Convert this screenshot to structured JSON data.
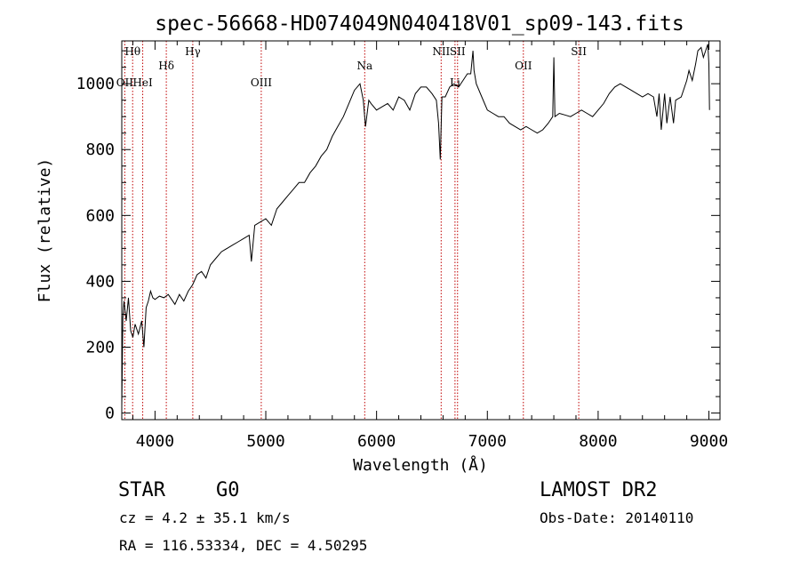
{
  "header": {
    "title": "spec-56668-HD074049N040418V01_sp09-143.fits"
  },
  "chart_data": {
    "type": "line",
    "xlabel": "Wavelength (Å)",
    "ylabel": "Flux (relative)",
    "xlim": [
      3700,
      9100
    ],
    "ylim": [
      -20,
      1130
    ],
    "x_ticks": [
      4000,
      5000,
      6000,
      7000,
      8000,
      9000
    ],
    "y_ticks": [
      0,
      200,
      400,
      600,
      800,
      1000
    ],
    "grid": false,
    "series": [
      {
        "x": [
          3700,
          3710,
          3720,
          3740,
          3760,
          3780,
          3800,
          3820,
          3850,
          3880,
          3900,
          3920,
          3940,
          3960,
          3980,
          4000,
          4040,
          4080,
          4120,
          4180,
          4220,
          4260,
          4300,
          4340,
          4380,
          4420,
          4460,
          4500,
          4550,
          4600,
          4650,
          4700,
          4750,
          4800,
          4850,
          4870,
          4900,
          4950,
          5000,
          5050,
          5100,
          5150,
          5200,
          5250,
          5300,
          5350,
          5400,
          5450,
          5500,
          5550,
          5600,
          5650,
          5700,
          5750,
          5800,
          5850,
          5880,
          5900,
          5930,
          5950,
          6000,
          6050,
          6100,
          6150,
          6200,
          6250,
          6300,
          6350,
          6400,
          6450,
          6500,
          6540,
          6560,
          6575,
          6590,
          6620,
          6660,
          6700,
          6740,
          6780,
          6820,
          6850,
          6870,
          6880,
          6900,
          6950,
          7000,
          7050,
          7100,
          7150,
          7200,
          7250,
          7300,
          7350,
          7400,
          7450,
          7500,
          7550,
          7590,
          7600,
          7610,
          7650,
          7700,
          7750,
          7800,
          7850,
          7900,
          7950,
          8000,
          8050,
          8100,
          8150,
          8200,
          8250,
          8300,
          8350,
          8400,
          8450,
          8500,
          8530,
          8550,
          8570,
          8600,
          8620,
          8650,
          8680,
          8700,
          8750,
          8800,
          8820,
          8850,
          8880,
          8900,
          8930,
          8950,
          8970,
          8990,
          9000,
          9005
        ],
        "y": [
          20,
          290,
          340,
          280,
          350,
          250,
          230,
          270,
          240,
          280,
          200,
          320,
          340,
          370,
          350,
          345,
          355,
          350,
          360,
          330,
          360,
          340,
          370,
          390,
          420,
          430,
          410,
          450,
          470,
          490,
          500,
          510,
          520,
          530,
          540,
          460,
          570,
          580,
          590,
          570,
          620,
          640,
          660,
          680,
          700,
          700,
          730,
          750,
          780,
          800,
          840,
          870,
          900,
          940,
          980,
          1000,
          950,
          870,
          950,
          940,
          920,
          930,
          940,
          920,
          960,
          950,
          920,
          970,
          990,
          990,
          970,
          950,
          880,
          770,
          960,
          960,
          990,
          1000,
          990,
          1010,
          1030,
          1030,
          1100,
          1040,
          1000,
          960,
          920,
          910,
          900,
          900,
          880,
          870,
          860,
          870,
          860,
          850,
          860,
          880,
          900,
          1080,
          900,
          910,
          905,
          900,
          910,
          920,
          910,
          900,
          920,
          940,
          970,
          990,
          1000,
          990,
          980,
          970,
          960,
          970,
          960,
          900,
          970,
          860,
          970,
          880,
          960,
          880,
          950,
          960,
          1010,
          1040,
          1010,
          1060,
          1100,
          1110,
          1080,
          1100,
          1120,
          1060,
          920
        ]
      }
    ],
    "line_markers": [
      {
        "label": "Hθ",
        "wavelength": 3798,
        "row": 0
      },
      {
        "label": "OII",
        "wavelength": 3727,
        "row": 2
      },
      {
        "label": "HeI",
        "wavelength": 3889,
        "row": 2
      },
      {
        "label": "Hδ",
        "wavelength": 4102,
        "row": 1
      },
      {
        "label": "Hγ",
        "wavelength": 4341,
        "row": 0
      },
      {
        "label": "OIII",
        "wavelength": 4959,
        "row": 2
      },
      {
        "label": "Na",
        "wavelength": 5893,
        "row": 1
      },
      {
        "label": "NII",
        "wavelength": 6583,
        "row": 0
      },
      {
        "label": "Li",
        "wavelength": 6708,
        "row": 2
      },
      {
        "label": "SII",
        "wavelength": 6731,
        "row": 0
      },
      {
        "label": "OII",
        "wavelength": 7325,
        "row": 1
      },
      {
        "label": "SII",
        "wavelength": 7825,
        "row": 0
      }
    ]
  },
  "info": {
    "class_label": "STAR",
    "subclass": "G0",
    "survey": "LAMOST DR2",
    "redshift": "cz = 4.2 ± 35.1 km/s",
    "obs_date": "Obs-Date: 20140110",
    "coords": "RA = 116.53334, DEC =   4.50295"
  }
}
